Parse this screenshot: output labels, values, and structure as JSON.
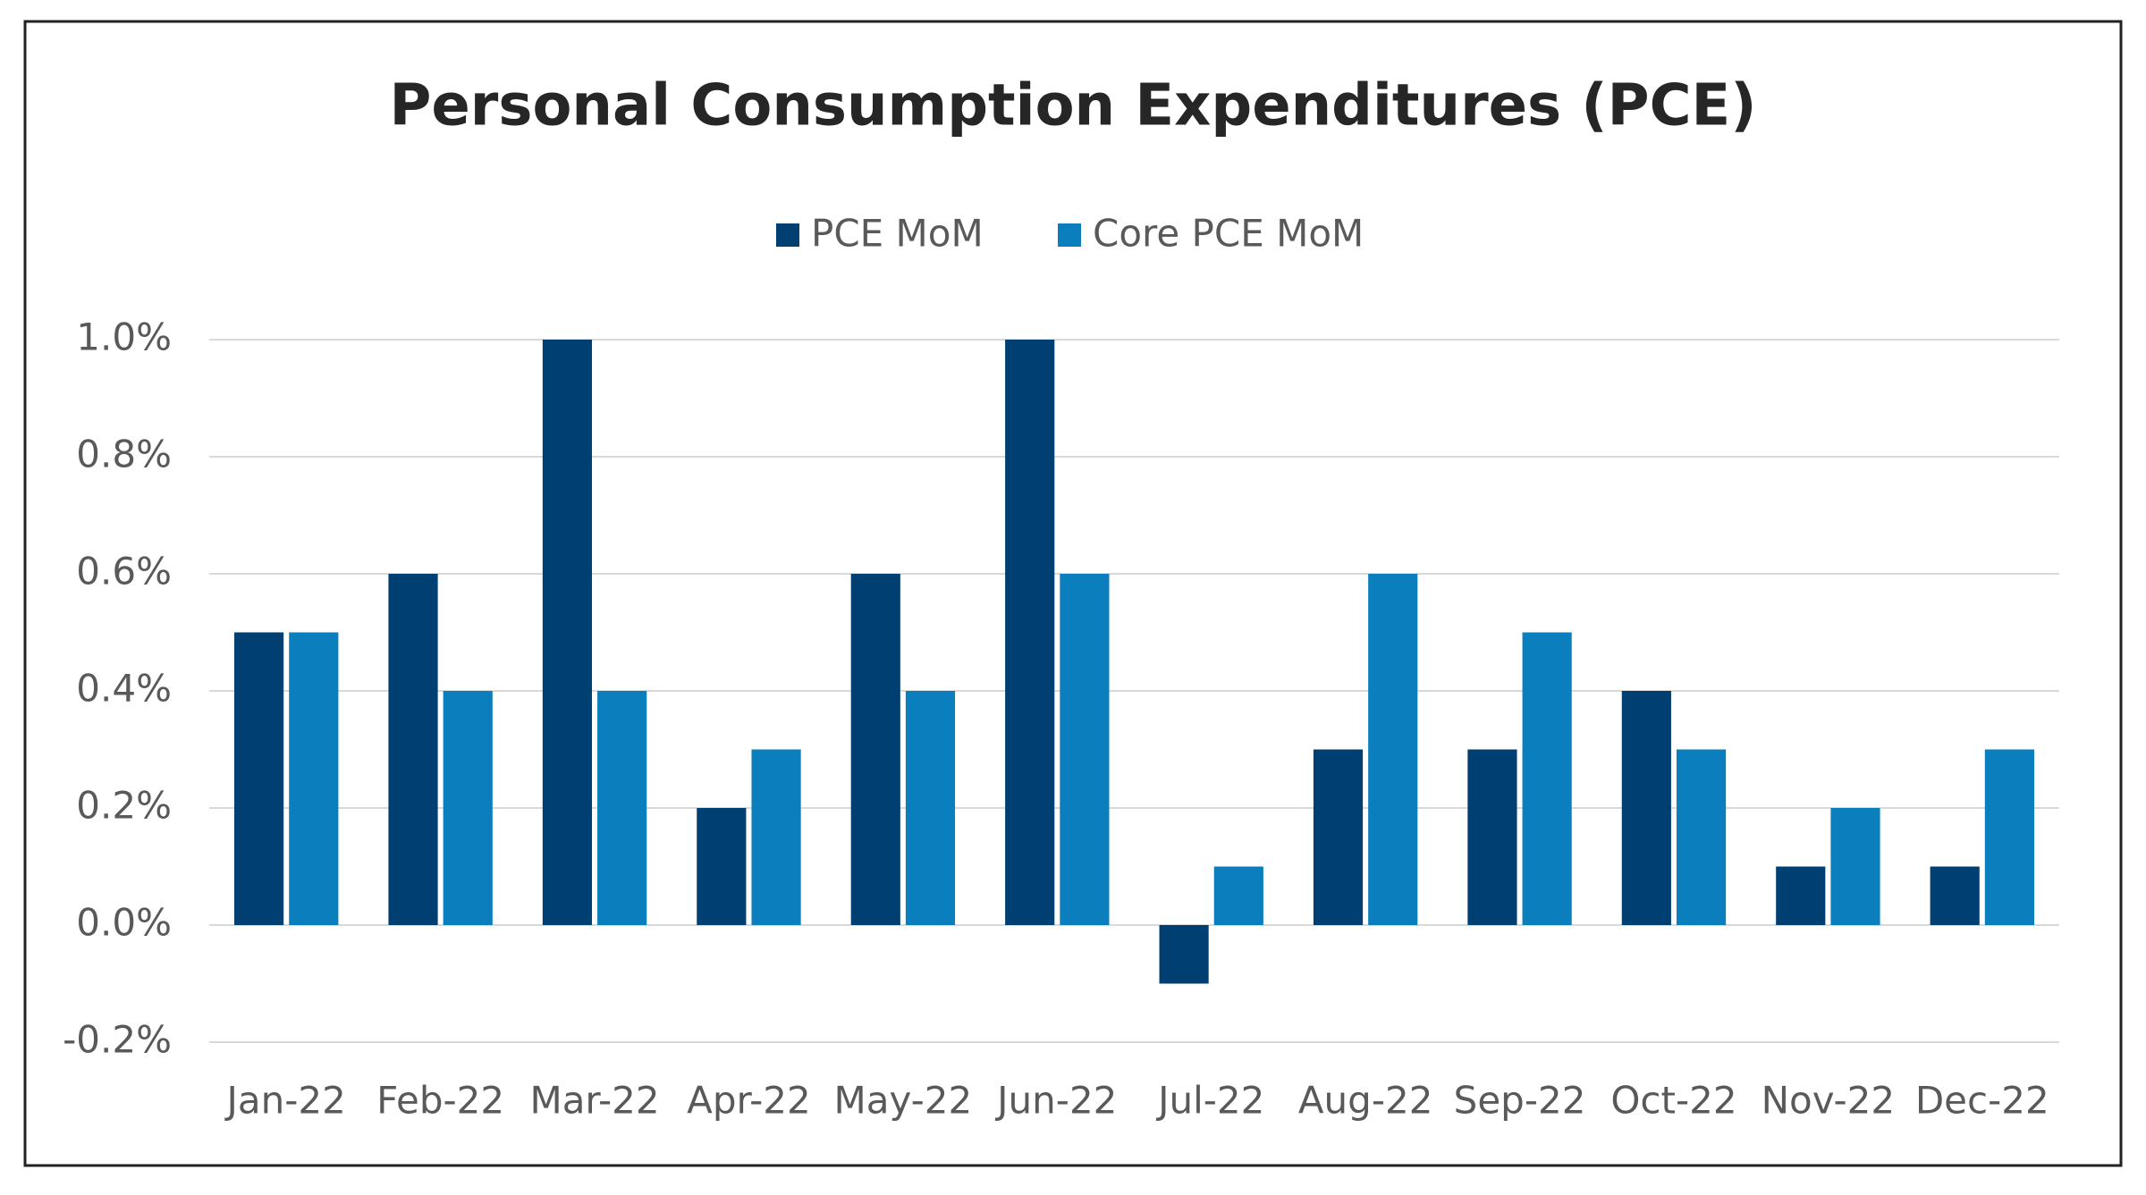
{
  "chart_data": {
    "type": "bar",
    "title": "Personal Consumption Expenditures (PCE)",
    "categories": [
      "Jan-22",
      "Feb-22",
      "Mar-22",
      "Apr-22",
      "May-22",
      "Jun-22",
      "Jul-22",
      "Aug-22",
      "Sep-22",
      "Oct-22",
      "Nov-22",
      "Dec-22"
    ],
    "series": [
      {
        "name": "PCE MoM",
        "color": "#003f72",
        "values": [
          0.5,
          0.6,
          1.0,
          0.2,
          0.6,
          1.0,
          -0.1,
          0.3,
          0.3,
          0.4,
          0.1,
          0.1
        ]
      },
      {
        "name": "Core PCE MoM",
        "color": "#0b7fbd",
        "values": [
          0.5,
          0.4,
          0.4,
          0.3,
          0.4,
          0.6,
          0.1,
          0.6,
          0.5,
          0.3,
          0.2,
          0.3
        ]
      }
    ],
    "ylim": [
      -0.2,
      1.0
    ],
    "yticks": [
      {
        "value": -0.2,
        "label": "-0.2%"
      },
      {
        "value": 0.0,
        "label": "0.0%"
      },
      {
        "value": 0.2,
        "label": "0.2%"
      },
      {
        "value": 0.4,
        "label": "0.4%"
      },
      {
        "value": 0.6,
        "label": "0.6%"
      },
      {
        "value": 0.8,
        "label": "0.8%"
      },
      {
        "value": 1.0,
        "label": "1.0%"
      }
    ],
    "grid": true,
    "legend": "top"
  }
}
